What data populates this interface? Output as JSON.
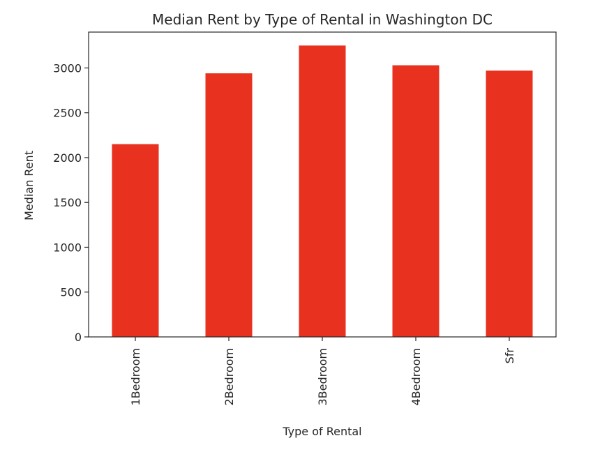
{
  "chart_data": {
    "type": "bar",
    "title": "Median Rent by Type of Rental in Washington DC",
    "xlabel": "Type of Rental",
    "ylabel": "Median Rent",
    "categories": [
      "1Bedroom",
      "2Bedroom",
      "3Bedroom",
      "4Bedroom",
      "Sfr"
    ],
    "values": [
      2150,
      2940,
      3250,
      3030,
      2970
    ],
    "ylim": [
      0,
      3400
    ],
    "yticks": [
      0,
      500,
      1000,
      1500,
      2000,
      2500,
      3000
    ],
    "bar_color": "#e8321f",
    "grid": false,
    "x_tick_rotation": "vertical"
  }
}
